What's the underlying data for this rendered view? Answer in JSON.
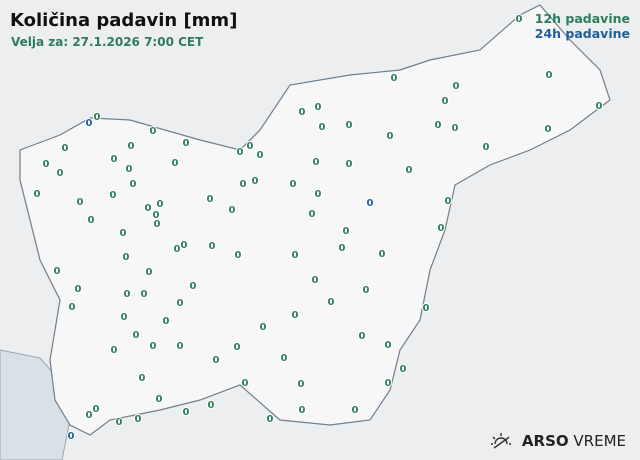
{
  "header": {
    "title": "Količina padavin [mm]",
    "valid": "Velja za: 27.1.2026 7:00 CET"
  },
  "legend": {
    "h12": "12h padavine",
    "h24": "24h padavine",
    "colors": {
      "h12": "#2e7d5b",
      "h24": "#1f5f99"
    }
  },
  "logo": {
    "brand": "ARSO",
    "product": "VREME",
    "icon": "sun-icon"
  },
  "stations": {
    "value": "0",
    "count_12h": 102,
    "h24_value": "0"
  }
}
